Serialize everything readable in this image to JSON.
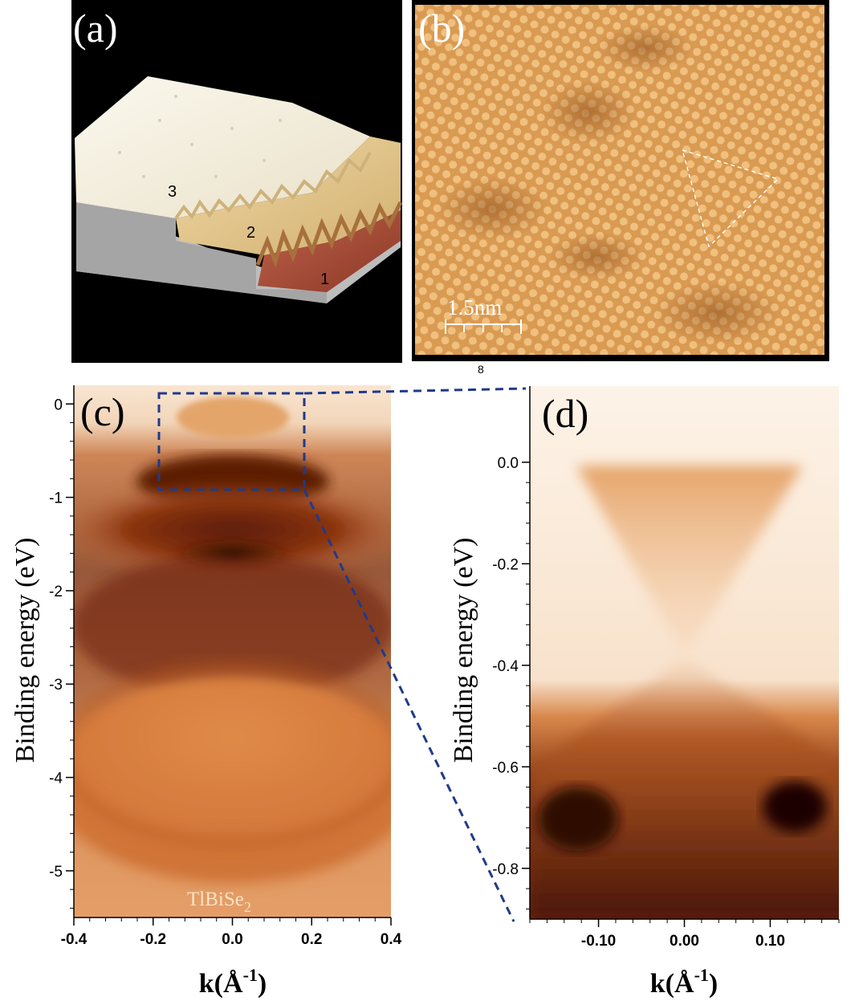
{
  "figure": {
    "panel_a": {
      "label": "(a)",
      "terrace_labels": [
        "3",
        "2",
        "1"
      ],
      "colors": {
        "terrace3": "#f2ecd9",
        "terrace2": "#e0c38a",
        "terrace1": "#b0503c",
        "side": "#a9a9a9"
      }
    },
    "panel_b": {
      "label": "(b)",
      "scale_bar": "1.5nm",
      "colors": {
        "base": "#d8944a",
        "highlight": "#f3c98a",
        "dark": "#a9642a"
      }
    },
    "page_number": "8",
    "panel_c": {
      "label": "(c)",
      "material_label": "TlBiSe",
      "material_subscript": "2",
      "ylabel": "Binding energy (eV)",
      "xlabel_main": "k(Å",
      "xlabel_exp": "-1",
      "xlabel_close": ")",
      "x_ticks": [
        "-0.4",
        "-0.2",
        "0.0",
        "0.2",
        "0.4"
      ],
      "y_ticks": [
        "0",
        "-1",
        "-2",
        "-3",
        "-4",
        "-5"
      ]
    },
    "panel_d": {
      "label": "(d)",
      "ylabel": "Binding energy (eV)",
      "xlabel_main": "k(Å",
      "xlabel_exp": "-1",
      "xlabel_close": ")",
      "x_ticks": [
        "-0.10",
        "0.00",
        "0.10"
      ],
      "y_ticks": [
        "0.0",
        "-0.2",
        "-0.4",
        "-0.6",
        "-0.8"
      ]
    },
    "zoom_box_color": "#1f3a8a",
    "chart_data": [
      {
        "type": "heatmap",
        "title": "",
        "xlabel": "k(Å-1)",
        "ylabel": "Binding energy (eV)",
        "xlim": [
          -0.4,
          0.4
        ],
        "ylim": [
          -5.5,
          0.2
        ],
        "x_ticks": [
          -0.4,
          -0.2,
          0.0,
          0.2,
          0.4
        ],
        "y_ticks": [
          0,
          -1,
          -2,
          -3,
          -4,
          -5
        ],
        "zoom_region": {
          "k": [
            -0.18,
            0.18
          ],
          "E": [
            -0.9,
            0.15
          ]
        }
      },
      {
        "type": "heatmap",
        "title": "",
        "xlabel": "k(Å-1)",
        "ylabel": "Binding energy (eV)",
        "xlim": [
          -0.18,
          0.18
        ],
        "ylim": [
          -0.9,
          0.15
        ],
        "x_ticks": [
          -0.1,
          0.0,
          0.1
        ],
        "y_ticks": [
          0.0,
          -0.2,
          -0.4,
          -0.6,
          -0.8
        ],
        "dirac_point": {
          "k": 0.0,
          "E": -0.4
        }
      }
    ]
  }
}
